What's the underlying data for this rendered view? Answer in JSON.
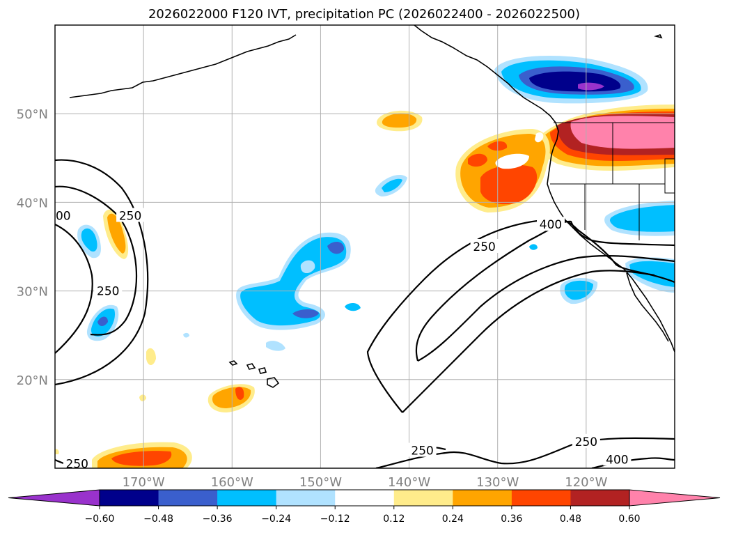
{
  "title": "2026022000 F120 IVT, precipitation PC (2026022400 - 2026022500)",
  "chart_data": {
    "type": "heatmap",
    "title": "2026022000 F120 IVT, precipitation PC (2026022400 - 2026022500)",
    "x_axis": {
      "label": "",
      "range_deg": [
        -180,
        -110
      ],
      "ticks": [
        {
          "value": -170,
          "label": "170°W"
        },
        {
          "value": -160,
          "label": "160°W"
        },
        {
          "value": -150,
          "label": "150°W"
        },
        {
          "value": -140,
          "label": "140°W"
        },
        {
          "value": -130,
          "label": "130°W"
        },
        {
          "value": -120,
          "label": "120°W"
        }
      ]
    },
    "y_axis": {
      "label": "",
      "range_deg": [
        10,
        60
      ],
      "ticks": [
        {
          "value": 20,
          "label": "20°N"
        },
        {
          "value": 30,
          "label": "30°N"
        },
        {
          "value": 40,
          "label": "40°N"
        },
        {
          "value": 50,
          "label": "50°N"
        }
      ]
    },
    "grid": true,
    "colorbar": {
      "placement": "bottom",
      "extend": "both",
      "bounds": [
        -0.6,
        -0.48,
        -0.36,
        -0.24,
        -0.12,
        0.12,
        0.24,
        0.36,
        0.48,
        0.6
      ],
      "tick_labels": [
        "−0.60",
        "−0.48",
        "−0.36",
        "−0.24",
        "−0.12",
        "0.12",
        "0.24",
        "0.36",
        "0.48",
        "0.60"
      ],
      "colors": [
        "#9932cc",
        "#00008b",
        "#3a5fcd",
        "#00bfff",
        "#b0e2ff",
        "#ffffff",
        "#ffec8b",
        "#ffa500",
        "#ff4500",
        "#b22222",
        "#ff82ab"
      ]
    },
    "ivt_contours": {
      "levels": [
        250,
        400
      ],
      "labels": [
        "250",
        "400"
      ]
    },
    "contour_labels": [
      {
        "text": "400",
        "lon": -179.5,
        "lat": 38.5
      },
      {
        "text": "250",
        "lon": -171.5,
        "lat": 38.5
      },
      {
        "text": "250",
        "lon": -174,
        "lat": 30
      },
      {
        "text": "250",
        "lon": -177.5,
        "lat": 10.5
      },
      {
        "text": "250",
        "lon": -131.5,
        "lat": 35
      },
      {
        "text": "400",
        "lon": -124,
        "lat": 37.5
      },
      {
        "text": "250",
        "lon": -138.5,
        "lat": 12
      },
      {
        "text": "250",
        "lon": -120,
        "lat": 13
      },
      {
        "text": "400",
        "lon": -116.5,
        "lat": 11
      }
    ],
    "precip_pc_regions": [
      {
        "name": "pacific-northwest-positive",
        "lon": -118,
        "lat": 47,
        "max": 0.6,
        "sign": "positive"
      },
      {
        "name": "northern-california-offshore-positive",
        "lon": -130,
        "lat": 43,
        "max": 0.36,
        "sign": "positive"
      },
      {
        "name": "british-columbia-negative",
        "lon": -120,
        "lat": 54,
        "min": -0.6,
        "sign": "negative"
      },
      {
        "name": "central-pacific-negative",
        "lon": -151,
        "lat": 32,
        "min": -0.48,
        "sign": "negative"
      },
      {
        "name": "southern-california-negative",
        "lon": -114,
        "lat": 38,
        "min": -0.36,
        "sign": "negative"
      },
      {
        "name": "hawaii-northwest-positive",
        "lon": -160,
        "lat": 18,
        "max": 0.36,
        "sign": "positive"
      },
      {
        "name": "south-west-positive",
        "lon": -170,
        "lat": 11,
        "max": 0.36,
        "sign": "positive"
      }
    ]
  }
}
